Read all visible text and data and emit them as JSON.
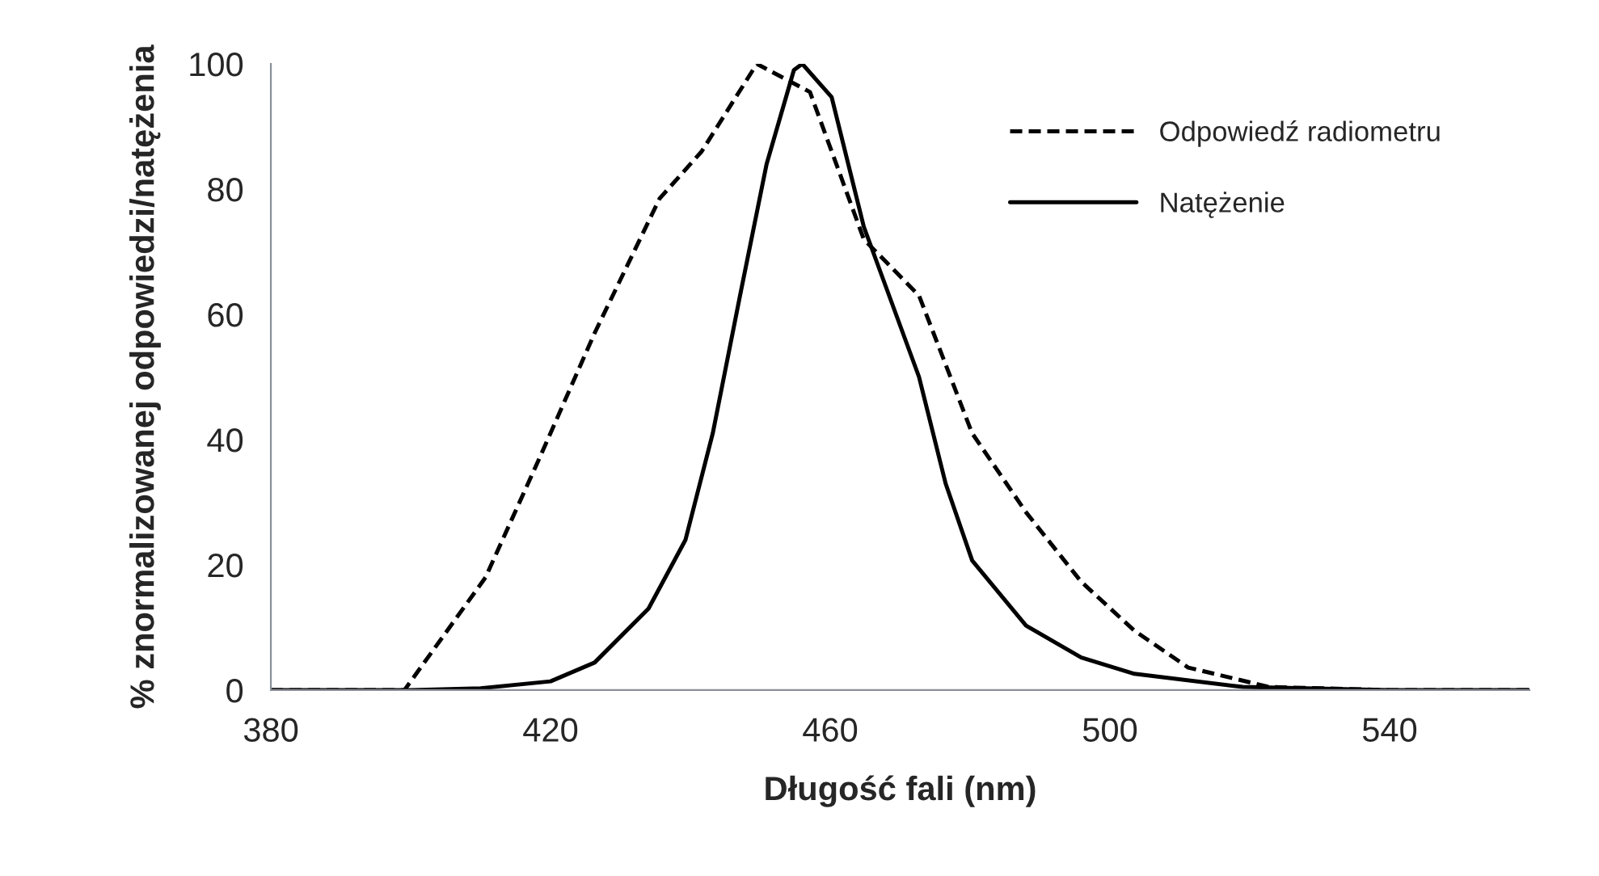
{
  "chart_data": {
    "type": "line",
    "xlabel": "Długość fali (nm)",
    "ylabel": "% znormalizowanej odpowiedzi/natężenia",
    "xlim": [
      380,
      560
    ],
    "xticks": [
      380,
      420,
      460,
      500,
      540
    ],
    "ylim": [
      0,
      100
    ],
    "yticks": [
      0,
      20,
      40,
      60,
      80,
      100
    ],
    "grid": false,
    "legend": "top right",
    "marker": "none",
    "series": [
      {
        "name": "Odpowiedź radiometru",
        "color": "#000000",
        "line_style": "dashed",
        "x": [
          380,
          390,
          399.1,
          410.7,
          418.4,
          426.3,
          435.6,
          441.6,
          449.5,
          457.1,
          464.8,
          472.7,
          480.3,
          488,
          495.9,
          503.5,
          511.2,
          522.8,
          540,
          560
        ],
        "values": [
          0,
          0,
          0,
          18,
          37,
          57,
          78.5,
          86,
          100,
          95.5,
          72,
          63,
          41,
          28.4,
          17.3,
          9.5,
          3.6,
          0.5,
          0,
          0
        ]
      },
      {
        "name": "Natężenie",
        "color": "#000000",
        "line_style": "solid",
        "x": [
          380,
          400,
          410,
          420,
          426.3,
          434,
          439.3,
          443.2,
          447.1,
          450.9,
          454.8,
          456,
          460.2,
          464.8,
          472.7,
          476.5,
          480.3,
          488,
          495.9,
          503.5,
          519,
          540,
          560
        ],
        "values": [
          0,
          0,
          0.3,
          1.4,
          4.4,
          13,
          24,
          41,
          63,
          84,
          99,
          100,
          94.7,
          74,
          50,
          33,
          20.7,
          10.3,
          5.2,
          2.6,
          0.5,
          0,
          0
        ]
      }
    ]
  }
}
